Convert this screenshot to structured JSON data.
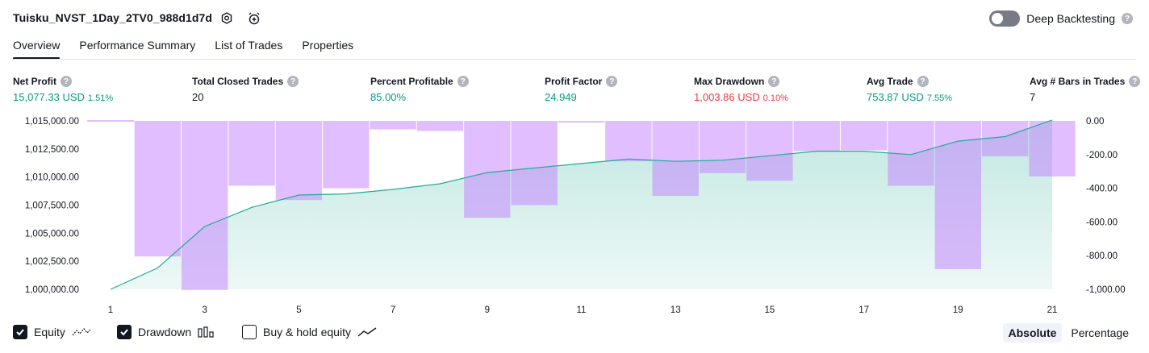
{
  "header": {
    "title": "Tuisku_NVST_1Day_2TV0_988d1d7d",
    "deep_backtesting_label": "Deep Backtesting",
    "help_glyph": "?"
  },
  "tabs": [
    {
      "label": "Overview",
      "active": true
    },
    {
      "label": "Performance Summary",
      "active": false
    },
    {
      "label": "List of Trades",
      "active": false
    },
    {
      "label": "Properties",
      "active": false
    }
  ],
  "metrics": [
    {
      "label": "Net Profit",
      "value": "15,077.33 USD",
      "pct": "1.51%",
      "color": "#089981"
    },
    {
      "label": "Total Closed Trades",
      "value": "20",
      "pct": "",
      "color": "#131722"
    },
    {
      "label": "Percent Profitable",
      "value": "85.00%",
      "pct": "",
      "color": "#089981"
    },
    {
      "label": "Profit Factor",
      "value": "24.949",
      "pct": "",
      "color": "#089981"
    },
    {
      "label": "Max Drawdown",
      "value": "1,003.86 USD",
      "pct": "0.10%",
      "color": "#f23645"
    },
    {
      "label": "Avg Trade",
      "value": "753.87 USD",
      "pct": "7.55%",
      "color": "#089981"
    },
    {
      "label": "Avg # Bars in Trades",
      "value": "7",
      "pct": "",
      "color": "#131722"
    }
  ],
  "chart_data": {
    "type": "line",
    "x": [
      1,
      2,
      3,
      4,
      5,
      6,
      7,
      8,
      9,
      10,
      11,
      12,
      13,
      14,
      15,
      16,
      17,
      18,
      19,
      20,
      21
    ],
    "x_tick_labels": [
      "1",
      "3",
      "5",
      "7",
      "9",
      "11",
      "13",
      "15",
      "17",
      "19",
      "21"
    ],
    "series": [
      {
        "kind": "equity-line",
        "axis": "left",
        "color": "#22ab94",
        "values": [
          1000000,
          1001900,
          1005600,
          1007300,
          1008400,
          1008500,
          1008900,
          1009400,
          1010400,
          1010800,
          1011200,
          1011600,
          1011400,
          1011500,
          1011900,
          1012300,
          1012300,
          1012000,
          1013200,
          1013600,
          1015077
        ]
      },
      {
        "kind": "drawdown-bars",
        "axis": "right",
        "color": "#c47dff",
        "values": [
          0,
          -805,
          -1003.86,
          -385,
          -470,
          -400,
          -50,
          -60,
          -575,
          -500,
          -10,
          -240,
          -445,
          -310,
          -355,
          -180,
          -175,
          -385,
          -880,
          -210,
          -330
        ]
      }
    ],
    "y_left": {
      "ticks": [
        "1,000,000.00",
        "1,002,500.00",
        "1,005,000.00",
        "1,007,500.00",
        "1,010,000.00",
        "1,012,500.00",
        "1,015,000.00"
      ],
      "range": [
        1000000,
        1015000
      ]
    },
    "y_right": {
      "ticks": [
        "0.00",
        "-200.00",
        "-400.00",
        "-600.00",
        "-800.00",
        "-1,000.00"
      ],
      "range": [
        -1000,
        0
      ]
    },
    "grid": false
  },
  "legend": {
    "items": [
      {
        "label": "Equity",
        "checked": true
      },
      {
        "label": "Drawdown",
        "checked": true
      },
      {
        "label": "Buy & hold equity",
        "checked": false
      }
    ],
    "scale_buttons": [
      {
        "label": "Absolute",
        "active": true
      },
      {
        "label": "Percentage",
        "active": false
      }
    ]
  }
}
